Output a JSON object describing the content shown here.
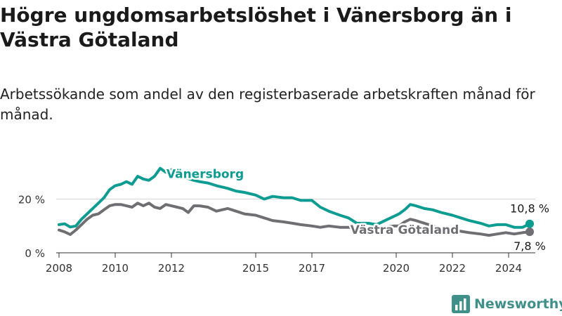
{
  "header": {
    "title": "Högre ungdomsarbetslöshet i Vänersborg än i Västra Götaland",
    "subtitle": "Arbetssökande som andel av den registerbaserade arbetskraften månad för månad."
  },
  "brand": {
    "name": "Newsworthy"
  },
  "colors": {
    "primary": "#0d9c92",
    "secondary": "#6f6f73",
    "brand": "#3f8f8b"
  },
  "chart_data": {
    "type": "line",
    "title": "Högre ungdomsarbetslöshet i Vänersborg än i Västra Götaland",
    "subtitle": "Arbetssökande som andel av den registerbaserade arbetskraften månad för månad.",
    "xlabel": "",
    "ylabel": "",
    "xlim": [
      2007.9,
      2024.95
    ],
    "ylim": [
      0,
      34
    ],
    "y_ticks": [
      {
        "value": 0,
        "label": "0 %"
      },
      {
        "value": 20,
        "label": "20 %"
      }
    ],
    "x_ticks": [
      {
        "value": 2008,
        "label": "2008"
      },
      {
        "value": 2010,
        "label": "2010"
      },
      {
        "value": 2012,
        "label": "2012"
      },
      {
        "value": 2015,
        "label": "2015"
      },
      {
        "value": 2017,
        "label": "2017"
      },
      {
        "value": 2020,
        "label": "2020"
      },
      {
        "value": 2022,
        "label": "2022"
      },
      {
        "value": 2024,
        "label": "2024"
      }
    ],
    "grid": true,
    "series": [
      {
        "name": "Vänersborg",
        "color": "#0d9c92",
        "last_label": "10,8 %",
        "points": [
          [
            2008.0,
            10.5
          ],
          [
            2008.2,
            10.8
          ],
          [
            2008.4,
            9.6
          ],
          [
            2008.6,
            10.0
          ],
          [
            2008.8,
            12.5
          ],
          [
            2009.0,
            14.5
          ],
          [
            2009.2,
            16.5
          ],
          [
            2009.4,
            18.5
          ],
          [
            2009.6,
            20.5
          ],
          [
            2009.8,
            23.5
          ],
          [
            2010.0,
            25.0
          ],
          [
            2010.2,
            25.5
          ],
          [
            2010.4,
            26.5
          ],
          [
            2010.6,
            25.5
          ],
          [
            2010.8,
            28.5
          ],
          [
            2011.0,
            27.5
          ],
          [
            2011.2,
            27.0
          ],
          [
            2011.4,
            28.5
          ],
          [
            2011.6,
            31.5
          ],
          [
            2011.8,
            30.0
          ],
          [
            2012.0,
            31.0
          ],
          [
            2012.2,
            29.0
          ],
          [
            2012.5,
            28.0
          ],
          [
            2012.8,
            27.0
          ],
          [
            2013.0,
            26.5
          ],
          [
            2013.3,
            26.0
          ],
          [
            2013.6,
            25.0
          ],
          [
            2014.0,
            24.0
          ],
          [
            2014.3,
            23.0
          ],
          [
            2014.6,
            22.5
          ],
          [
            2015.0,
            21.5
          ],
          [
            2015.3,
            20.0
          ],
          [
            2015.6,
            21.0
          ],
          [
            2016.0,
            20.5
          ],
          [
            2016.3,
            20.5
          ],
          [
            2016.6,
            19.5
          ],
          [
            2017.0,
            19.5
          ],
          [
            2017.3,
            17.0
          ],
          [
            2017.6,
            15.5
          ],
          [
            2018.0,
            14.0
          ],
          [
            2018.3,
            13.0
          ],
          [
            2018.6,
            11.0
          ],
          [
            2019.0,
            11.0
          ],
          [
            2019.3,
            10.5
          ],
          [
            2019.6,
            12.0
          ],
          [
            2019.9,
            13.5
          ],
          [
            2020.1,
            14.5
          ],
          [
            2020.3,
            16.0
          ],
          [
            2020.5,
            18.0
          ],
          [
            2020.7,
            17.5
          ],
          [
            2021.0,
            16.5
          ],
          [
            2021.3,
            16.0
          ],
          [
            2021.6,
            15.0
          ],
          [
            2022.0,
            14.0
          ],
          [
            2022.3,
            13.0
          ],
          [
            2022.6,
            12.0
          ],
          [
            2023.0,
            11.0
          ],
          [
            2023.3,
            10.0
          ],
          [
            2023.6,
            10.5
          ],
          [
            2023.9,
            10.5
          ],
          [
            2024.2,
            9.5
          ],
          [
            2024.5,
            9.5
          ],
          [
            2024.75,
            10.8
          ]
        ]
      },
      {
        "name": "Västra Götaland",
        "color": "#6f6f73",
        "last_label": "7,8 %",
        "points": [
          [
            2008.0,
            8.5
          ],
          [
            2008.2,
            7.8
          ],
          [
            2008.4,
            6.8
          ],
          [
            2008.6,
            8.5
          ],
          [
            2008.8,
            10.5
          ],
          [
            2009.0,
            12.5
          ],
          [
            2009.2,
            14.0
          ],
          [
            2009.4,
            14.5
          ],
          [
            2009.6,
            16.0
          ],
          [
            2009.8,
            17.5
          ],
          [
            2010.0,
            18.0
          ],
          [
            2010.2,
            18.0
          ],
          [
            2010.4,
            17.5
          ],
          [
            2010.6,
            17.0
          ],
          [
            2010.8,
            18.5
          ],
          [
            2011.0,
            17.5
          ],
          [
            2011.2,
            18.5
          ],
          [
            2011.4,
            17.0
          ],
          [
            2011.6,
            16.5
          ],
          [
            2011.8,
            18.0
          ],
          [
            2012.0,
            17.5
          ],
          [
            2012.2,
            17.0
          ],
          [
            2012.4,
            16.5
          ],
          [
            2012.6,
            15.0
          ],
          [
            2012.8,
            17.5
          ],
          [
            2013.0,
            17.5
          ],
          [
            2013.3,
            17.0
          ],
          [
            2013.6,
            15.5
          ],
          [
            2014.0,
            16.5
          ],
          [
            2014.3,
            15.5
          ],
          [
            2014.6,
            14.5
          ],
          [
            2015.0,
            14.0
          ],
          [
            2015.3,
            13.0
          ],
          [
            2015.6,
            12.0
          ],
          [
            2016.0,
            11.5
          ],
          [
            2016.3,
            11.0
          ],
          [
            2016.6,
            10.5
          ],
          [
            2017.0,
            10.0
          ],
          [
            2017.3,
            9.5
          ],
          [
            2017.6,
            10.0
          ],
          [
            2018.0,
            9.5
          ],
          [
            2018.3,
            9.5
          ],
          [
            2018.6,
            9.0
          ],
          [
            2019.0,
            9.0
          ],
          [
            2019.3,
            9.0
          ],
          [
            2019.6,
            9.5
          ],
          [
            2019.9,
            10.0
          ],
          [
            2020.1,
            10.0
          ],
          [
            2020.3,
            11.5
          ],
          [
            2020.5,
            12.5
          ],
          [
            2020.7,
            12.0
          ],
          [
            2021.0,
            11.0
          ],
          [
            2021.3,
            10.0
          ],
          [
            2021.6,
            9.0
          ],
          [
            2022.0,
            8.5
          ],
          [
            2022.3,
            8.0
          ],
          [
            2022.6,
            7.5
          ],
          [
            2023.0,
            7.0
          ],
          [
            2023.3,
            6.5
          ],
          [
            2023.6,
            7.0
          ],
          [
            2023.9,
            7.5
          ],
          [
            2024.2,
            7.0
          ],
          [
            2024.5,
            7.5
          ],
          [
            2024.75,
            7.8
          ]
        ]
      }
    ],
    "annotations": [
      {
        "series": "Vänersborg",
        "text": "Vänersborg",
        "x": 2013.2,
        "y": 27.8
      },
      {
        "series": "Västra Götaland",
        "text": "Västra Götaland",
        "x": 2020.3,
        "y": 7.0
      }
    ]
  }
}
